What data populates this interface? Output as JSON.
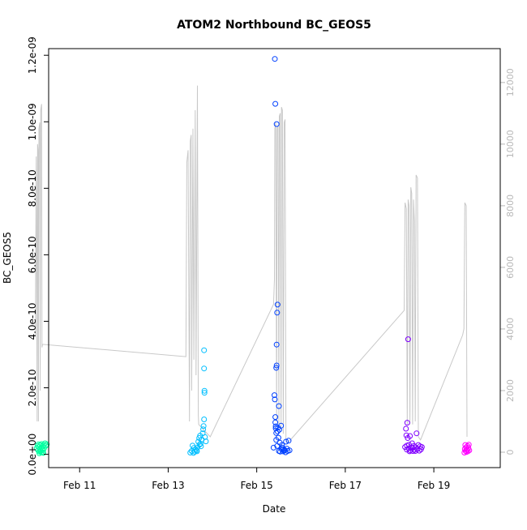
{
  "chart_data": {
    "type": "scatter",
    "title": "ATOM2 Northbound BC_GEOS5",
    "xlabel": "Date",
    "ylabel": "BC_GEOS5",
    "xlim": [
      10.3,
      20.5
    ],
    "ylim": [
      -4e-11,
      1.22e-09
    ],
    "x_ticks": [
      {
        "value": 11,
        "label": "Feb 11"
      },
      {
        "value": 13,
        "label": "Feb 13"
      },
      {
        "value": 15,
        "label": "Feb 15"
      },
      {
        "value": 17,
        "label": "Feb 17"
      },
      {
        "value": 19,
        "label": "Feb 19"
      }
    ],
    "y_ticks": [
      {
        "value": 0.0,
        "label": "0.0e+00"
      },
      {
        "value": 2e-10,
        "label": "2.0e-10"
      },
      {
        "value": 4e-10,
        "label": "4.0e-10"
      },
      {
        "value": 6e-10,
        "label": "6.0e-10"
      },
      {
        "value": 8e-10,
        "label": "8.0e-10"
      },
      {
        "value": 1e-09,
        "label": "1.0e-09"
      },
      {
        "value": 1.2e-09,
        "label": "1.2e-09"
      }
    ],
    "y2_ticks": [
      {
        "value": 0,
        "label": "0"
      },
      {
        "value": 2000,
        "label": "2000"
      },
      {
        "value": 4000,
        "label": "4000"
      },
      {
        "value": 6000,
        "label": "6000"
      },
      {
        "value": 8000,
        "label": "8000"
      },
      {
        "value": 10000,
        "label": "10000"
      },
      {
        "value": 12000,
        "label": "12000"
      }
    ],
    "y2lim": [
      -500,
      13100
    ],
    "grid": false,
    "point_colors": [
      "#00ffa0",
      "#00bfff",
      "#0040ff",
      "#8000ff",
      "#ff00ff"
    ],
    "altitude_color": "#c8c8c8",
    "series": [
      {
        "color": "#00ffa0",
        "points": [
          [
            10.03,
            1.8e-11
          ],
          [
            10.05,
            2.5e-11
          ],
          [
            10.06,
            1.2e-11
          ],
          [
            10.07,
            3e-11
          ],
          [
            10.08,
            2.2e-11
          ],
          [
            10.09,
            8e-12
          ],
          [
            10.1,
            1.5e-11
          ],
          [
            10.11,
            2.8e-11
          ],
          [
            10.12,
            1e-11
          ],
          [
            10.13,
            2e-11
          ],
          [
            10.14,
            3.1e-11
          ],
          [
            10.15,
            1.6e-11
          ],
          [
            10.16,
            5e-12
          ],
          [
            10.17,
            2.4e-11
          ],
          [
            10.18,
            1.3e-11
          ],
          [
            10.19,
            2.9e-11
          ],
          [
            10.2,
            1.9e-11
          ],
          [
            10.22,
            3.3e-11
          ],
          [
            10.24,
            2.6e-11
          ],
          [
            10.26,
            3e-11
          ],
          [
            10.09,
            3e-12
          ],
          [
            10.13,
            6e-12
          ],
          [
            10.18,
            4e-12
          ]
        ]
      },
      {
        "color": "#00bfff",
        "points": [
          [
            13.5,
            5e-12
          ],
          [
            13.53,
            1e-11
          ],
          [
            13.55,
            2.6e-11
          ],
          [
            13.57,
            4e-12
          ],
          [
            13.6,
            8e-12
          ],
          [
            13.62,
            1.5e-11
          ],
          [
            13.64,
            1.2e-11
          ],
          [
            13.66,
            2e-11
          ],
          [
            13.68,
            3.8e-11
          ],
          [
            13.7,
            4.9e-11
          ],
          [
            13.72,
            5.6e-11
          ],
          [
            13.73,
            3.2e-11
          ],
          [
            13.74,
            2.4e-11
          ],
          [
            13.76,
            4.4e-11
          ],
          [
            13.78,
            6.3e-11
          ],
          [
            13.79,
            7.5e-11
          ],
          [
            13.8,
            8.5e-11
          ],
          [
            13.81,
            1.05e-10
          ],
          [
            13.82,
            1.85e-10
          ],
          [
            13.82,
            1.91e-10
          ],
          [
            13.81,
            2.58e-10
          ],
          [
            13.81,
            3.13e-10
          ],
          [
            13.83,
            5.2e-11
          ],
          [
            13.85,
            3.9e-11
          ],
          [
            13.58,
            1.9e-11
          ],
          [
            13.65,
            9e-12
          ],
          [
            13.71,
            2.9e-11
          ]
        ]
      },
      {
        "color": "#0040ff",
        "points": [
          [
            15.38,
            2e-11
          ],
          [
            15.4,
            1.78e-10
          ],
          [
            15.41,
            1.65e-10
          ],
          [
            15.42,
            9.6e-11
          ],
          [
            15.42,
            1.12e-10
          ],
          [
            15.43,
            7.8e-11
          ],
          [
            15.43,
            8.4e-11
          ],
          [
            15.44,
            6.4e-11
          ],
          [
            15.44,
            4.3e-11
          ],
          [
            15.44,
            2.6e-10
          ],
          [
            15.45,
            2.67e-10
          ],
          [
            15.45,
            3.3e-10
          ],
          [
            15.46,
            4.26e-10
          ],
          [
            15.47,
            4.5e-10
          ],
          [
            15.45,
            9.93e-10
          ],
          [
            15.42,
            1.054e-09
          ],
          [
            15.41,
            1.189e-09
          ],
          [
            15.48,
            8e-11
          ],
          [
            15.49,
            5e-11
          ],
          [
            15.5,
            1.45e-10
          ],
          [
            15.52,
            3.5e-11
          ],
          [
            15.55,
            8.6e-11
          ],
          [
            15.58,
            2e-11
          ],
          [
            15.6,
            1.5e-11
          ],
          [
            15.63,
            1.3e-11
          ],
          [
            15.66,
            3.8e-11
          ],
          [
            15.7,
            1e-11
          ],
          [
            15.72,
            4.1e-11
          ],
          [
            15.74,
            1.2e-11
          ],
          [
            15.5,
            1e-11
          ],
          [
            15.53,
            8e-12
          ],
          [
            15.56,
            1.6e-11
          ],
          [
            15.59,
            9e-12
          ],
          [
            15.62,
            1.1e-11
          ],
          [
            15.65,
            6e-12
          ],
          [
            15.68,
            1.7e-11
          ],
          [
            15.46,
            2.5e-11
          ],
          [
            15.47,
            6.9e-11
          ],
          [
            15.51,
            7.4e-11
          ],
          [
            15.57,
            2.8e-11
          ]
        ]
      },
      {
        "color": "#8000ff",
        "points": [
          [
            18.35,
            2.2e-11
          ],
          [
            18.37,
            7.7e-11
          ],
          [
            18.38,
            5.7e-11
          ],
          [
            18.39,
            2.6e-11
          ],
          [
            18.4,
            9.5e-11
          ],
          [
            18.41,
            4.9e-11
          ],
          [
            18.42,
            3.46e-10
          ],
          [
            18.43,
            1.8e-11
          ],
          [
            18.44,
            2.9e-11
          ],
          [
            18.46,
            5.5e-11
          ],
          [
            18.47,
            1.2e-11
          ],
          [
            18.49,
            2e-11
          ],
          [
            18.51,
            3.3e-11
          ],
          [
            18.53,
            1e-11
          ],
          [
            18.55,
            2.5e-11
          ],
          [
            18.57,
            1.4e-11
          ],
          [
            18.59,
            2.1e-11
          ],
          [
            18.61,
            6.3e-11
          ],
          [
            18.63,
            1.6e-11
          ],
          [
            18.65,
            2.8e-11
          ],
          [
            18.67,
            1.1e-11
          ],
          [
            18.69,
            2.4e-11
          ],
          [
            18.71,
            1.5e-11
          ],
          [
            18.73,
            2.2e-11
          ],
          [
            18.39,
            1.4e-11
          ],
          [
            18.45,
            9e-12
          ],
          [
            18.52,
            1.9e-11
          ],
          [
            18.58,
            1e-11
          ]
        ]
      },
      {
        "color": "#ff00ff",
        "points": [
          [
            19.69,
            5e-12
          ],
          [
            19.7,
            1.6e-11
          ],
          [
            19.71,
            2.8e-11
          ],
          [
            19.72,
            1e-11
          ],
          [
            19.73,
            2.1e-11
          ],
          [
            19.74,
            7e-12
          ],
          [
            19.75,
            1.3e-11
          ],
          [
            19.76,
            2.5e-11
          ],
          [
            19.77,
            9e-12
          ],
          [
            19.78,
            1.9e-11
          ],
          [
            19.79,
            2.9e-11
          ],
          [
            19.8,
            1.2e-11
          ]
        ]
      }
    ],
    "altitude_m": [
      [
        10.0,
        3800
      ],
      [
        10.02,
        9600
      ],
      [
        10.04,
        1000
      ],
      [
        10.05,
        10000
      ],
      [
        10.06,
        9800
      ],
      [
        10.07,
        1000
      ],
      [
        10.08,
        10500
      ],
      [
        10.1,
        10700
      ],
      [
        10.11,
        2000
      ],
      [
        10.12,
        11100
      ],
      [
        10.14,
        11300
      ],
      [
        10.15,
        3400
      ],
      [
        10.16,
        3500
      ],
      [
        13.4,
        3100
      ],
      [
        13.42,
        9400
      ],
      [
        13.45,
        9800
      ],
      [
        13.48,
        1000
      ],
      [
        13.5,
        10100
      ],
      [
        13.52,
        10300
      ],
      [
        13.53,
        2000
      ],
      [
        13.56,
        10500
      ],
      [
        13.58,
        3000
      ],
      [
        13.61,
        11100
      ],
      [
        13.63,
        2500
      ],
      [
        13.66,
        11900
      ],
      [
        13.68,
        1200
      ],
      [
        13.69,
        900
      ],
      [
        13.95,
        500
      ],
      [
        15.38,
        4800
      ],
      [
        15.4,
        5600
      ],
      [
        15.41,
        10500
      ],
      [
        15.43,
        10700
      ],
      [
        15.45,
        1000
      ],
      [
        15.46,
        10500
      ],
      [
        15.48,
        10600
      ],
      [
        15.5,
        800
      ],
      [
        15.51,
        10900
      ],
      [
        15.53,
        11000
      ],
      [
        15.55,
        800
      ],
      [
        15.56,
        11200
      ],
      [
        15.58,
        11100
      ],
      [
        15.6,
        600
      ],
      [
        15.62,
        10700
      ],
      [
        15.64,
        10800
      ],
      [
        15.66,
        400
      ],
      [
        15.7,
        300
      ],
      [
        18.33,
        4600
      ],
      [
        18.35,
        8100
      ],
      [
        18.38,
        7900
      ],
      [
        18.4,
        900
      ],
      [
        18.42,
        8200
      ],
      [
        18.44,
        8000
      ],
      [
        18.46,
        900
      ],
      [
        18.48,
        8600
      ],
      [
        18.5,
        8400
      ],
      [
        18.52,
        900
      ],
      [
        18.54,
        8200
      ],
      [
        18.56,
        7500
      ],
      [
        18.58,
        1000
      ],
      [
        18.6,
        9000
      ],
      [
        18.63,
        8900
      ],
      [
        18.65,
        500
      ],
      [
        18.7,
        400
      ],
      [
        19.65,
        3800
      ],
      [
        19.68,
        4000
      ],
      [
        19.7,
        8100
      ],
      [
        19.73,
        8000
      ],
      [
        19.75,
        500
      ]
    ]
  }
}
